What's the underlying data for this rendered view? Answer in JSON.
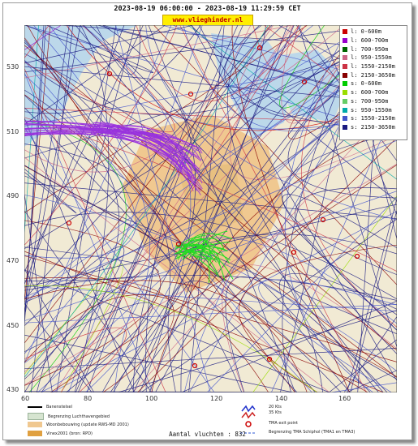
{
  "header": {
    "title": "2023-08-19 06:00:00 - 2023-08-19 11:29:59 CET",
    "site": "www.vlieghinder.nl"
  },
  "axes": {
    "y_ticks": [
      "530",
      "510",
      "490",
      "470",
      "450",
      "430"
    ],
    "x_ticks": [
      "60",
      "80",
      "100",
      "120",
      "140",
      "160"
    ],
    "x_range": [
      60,
      170
    ],
    "y_range": [
      430,
      538
    ]
  },
  "legend": {
    "items": [
      {
        "label": "l: 0-600m",
        "color": "#cc0000"
      },
      {
        "label": "l: 600-700m",
        "color": "#9900cc"
      },
      {
        "label": "l: 700-950m",
        "color": "#006600"
      },
      {
        "label": "l: 950-1550m",
        "color": "#cc6688"
      },
      {
        "label": "l: 1550-2150m",
        "color": "#cc3344"
      },
      {
        "label": "l: 2150-3650m",
        "color": "#880000"
      },
      {
        "label": "s: 0-600m",
        "color": "#00cc00"
      },
      {
        "label": "s: 600-700m",
        "color": "#99dd00"
      },
      {
        "label": "s: 700-950m",
        "color": "#66cc66"
      },
      {
        "label": "s: 950-1550m",
        "color": "#00aaaa"
      },
      {
        "label": "s: 1550-2150m",
        "color": "#4455cc"
      },
      {
        "label": "s: 2150-3650m",
        "color": "#1a1a80"
      }
    ]
  },
  "bottom_legend": {
    "runway": "Banenstelsel",
    "airport": "Begrenzing Luchthavengebied",
    "housing": "Woonbebouwing (update RWS-MD 2001)",
    "vinex": "Vinex2001 (bron: RPD)",
    "wind_20": "20 Kts",
    "wind_35": "35 Kts",
    "tma_exit": "TMA exit point",
    "tma_boundary": "Begrenzing TMA Schiphol  (TMA1 en TMA3)"
  },
  "footer": {
    "count": "Aantal vluchten : 832"
  },
  "colors": {
    "sea": "#bcd8ea",
    "land": "#f1ead4",
    "urban": "#f0c890",
    "vinex": "#e8b060"
  }
}
